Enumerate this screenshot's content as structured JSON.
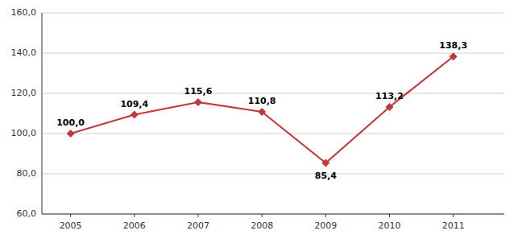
{
  "chart_data": {
    "type": "line",
    "x": [
      2005,
      2006,
      2007,
      2008,
      2009,
      2010,
      2011
    ],
    "values": [
      100.0,
      109.4,
      115.6,
      110.8,
      85.4,
      113.2,
      138.3
    ],
    "value_labels": [
      "100,0",
      "109,4",
      "115,6",
      "110,8",
      "85,4",
      "113,2",
      "138,3"
    ],
    "data_labels": true,
    "color": "#C0393B",
    "marker": "diamond",
    "xlim": [
      2004.55,
      2011.8
    ],
    "xticks": [
      2005,
      2006,
      2007,
      2008,
      2009,
      2010,
      2011
    ],
    "ylim": [
      60,
      160
    ],
    "yticks": [
      {
        "value": 60.0,
        "label": "60,0"
      },
      {
        "value": 80.0,
        "label": "80,0"
      },
      {
        "value": 100.0,
        "label": "100,0"
      },
      {
        "value": 120.0,
        "label": "120,0"
      },
      {
        "value": 140.0,
        "label": "140,0"
      },
      {
        "value": 160.0,
        "label": "160,0"
      }
    ],
    "grid": true
  }
}
